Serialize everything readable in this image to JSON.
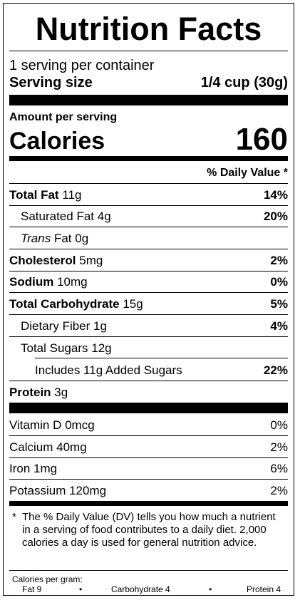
{
  "title": "Nutrition Facts",
  "servings_per_container": "1 serving per container",
  "serving_size": {
    "label": "Serving size",
    "value": "1/4 cup (30g)"
  },
  "amount_per_serving": "Amount per serving",
  "calories": {
    "label": "Calories",
    "value": "160"
  },
  "dv_header": "% Daily Value *",
  "nutrients": [
    {
      "label": "Total Fat",
      "amount": "11g",
      "dv": "14%"
    },
    {
      "label": "Saturated Fat",
      "amount": "4g",
      "dv": "20%"
    },
    {
      "label_italic": "Trans",
      "label": "Fat",
      "amount": "0g",
      "dv": ""
    },
    {
      "label": "Cholesterol",
      "amount": "5mg",
      "dv": "2%"
    },
    {
      "label": "Sodium",
      "amount": "10mg",
      "dv": "0%"
    },
    {
      "label": "Total Carbohydrate",
      "amount": "15g",
      "dv": "5%"
    },
    {
      "label": "Dietary Fiber",
      "amount": "1g",
      "dv": "4%"
    },
    {
      "label": "Total Sugars",
      "amount": "12g",
      "dv": ""
    },
    {
      "label": "Includes 11g Added Sugars",
      "amount": "",
      "dv": "22%"
    },
    {
      "label": "Protein",
      "amount": "3g",
      "dv": ""
    }
  ],
  "vitamins": [
    {
      "label": "Vitamin D 0mcg",
      "dv": "0%"
    },
    {
      "label": "Calcium 40mg",
      "dv": "2%"
    },
    {
      "label": "Iron 1mg",
      "dv": "6%"
    },
    {
      "label": "Potassium 120mg",
      "dv": "2%"
    }
  ],
  "footnote": {
    "star": "*",
    "text": "The % Daily Value (DV) tells you how much a nutrient in a serving of food contributes to a daily diet. 2,000 calories a day is used for general nutrition advice."
  },
  "calories_per_gram": {
    "label": "Calories per gram:",
    "fat": "Fat 9",
    "carbohydrate": "Carbohydrate 4",
    "protein": "Protein 4",
    "bullet": "•"
  }
}
